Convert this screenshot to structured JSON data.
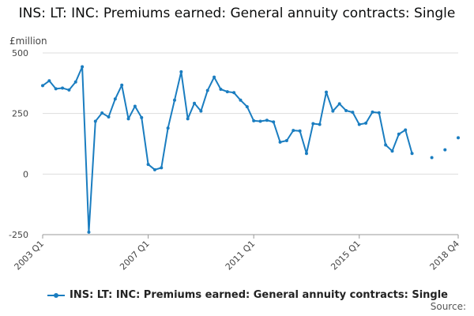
{
  "title": "INS: LT: INC: Premiums earned: General annuity contracts: Single",
  "unit_label": "£million",
  "source_label": "Source:",
  "chart_data": {
    "type": "line",
    "title": "INS: LT: INC: Premiums earned: General annuity contracts: Single",
    "ylabel": "£million",
    "ylim": [
      -250,
      500
    ],
    "yticks": [
      500,
      250,
      0,
      -250
    ],
    "xtick_labels": [
      "2003 Q1",
      "2007 Q1",
      "2011 Q1",
      "2015 Q1",
      "2018 Q4"
    ],
    "xtick_indices": [
      0,
      16,
      32,
      48,
      63
    ],
    "legend": "bottom",
    "grid": true,
    "colors": {
      "series": "#1a7dc0",
      "grid": "#dddddd",
      "axis": "#999999"
    },
    "series": [
      {
        "name": "INS: LT: INC: Premiums earned: General annuity contracts: Single",
        "x": [
          "2003 Q1",
          "2003 Q2",
          "2003 Q3",
          "2003 Q4",
          "2004 Q1",
          "2004 Q2",
          "2004 Q3",
          "2004 Q4",
          "2005 Q1",
          "2005 Q2",
          "2005 Q3",
          "2005 Q4",
          "2006 Q1",
          "2006 Q2",
          "2006 Q3",
          "2006 Q4",
          "2007 Q1",
          "2007 Q2",
          "2007 Q3",
          "2007 Q4",
          "2008 Q1",
          "2008 Q2",
          "2008 Q3",
          "2008 Q4",
          "2009 Q1",
          "2009 Q2",
          "2009 Q3",
          "2009 Q4",
          "2010 Q1",
          "2010 Q2",
          "2010 Q3",
          "2010 Q4",
          "2011 Q1",
          "2011 Q2",
          "2011 Q3",
          "2011 Q4",
          "2012 Q1",
          "2012 Q2",
          "2012 Q3",
          "2012 Q4",
          "2013 Q1",
          "2013 Q2",
          "2013 Q3",
          "2013 Q4",
          "2014 Q1",
          "2014 Q2",
          "2014 Q3",
          "2014 Q4",
          "2015 Q1",
          "2015 Q2",
          "2015 Q3",
          "2015 Q4",
          "2016 Q1",
          "2016 Q2",
          "2016 Q3",
          "2016 Q4",
          "2017 Q1",
          "2017 Q2",
          "2017 Q3",
          "2017 Q4",
          "2018 Q1",
          "2018 Q2",
          "2018 Q3",
          "2018 Q4"
        ],
        "values": [
          365,
          385,
          352,
          355,
          347,
          380,
          443,
          -240,
          218,
          252,
          236,
          310,
          367,
          228,
          280,
          233,
          40,
          18,
          26,
          190,
          305,
          422,
          228,
          292,
          260,
          345,
          400,
          350,
          340,
          336,
          305,
          278,
          220,
          218,
          222,
          215,
          132,
          138,
          180,
          178,
          85,
          208,
          205,
          338,
          260,
          290,
          262,
          255,
          205,
          210,
          256,
          253,
          120,
          95,
          165,
          182,
          85,
          null,
          null,
          68,
          null,
          100,
          null,
          150
        ]
      }
    ]
  }
}
